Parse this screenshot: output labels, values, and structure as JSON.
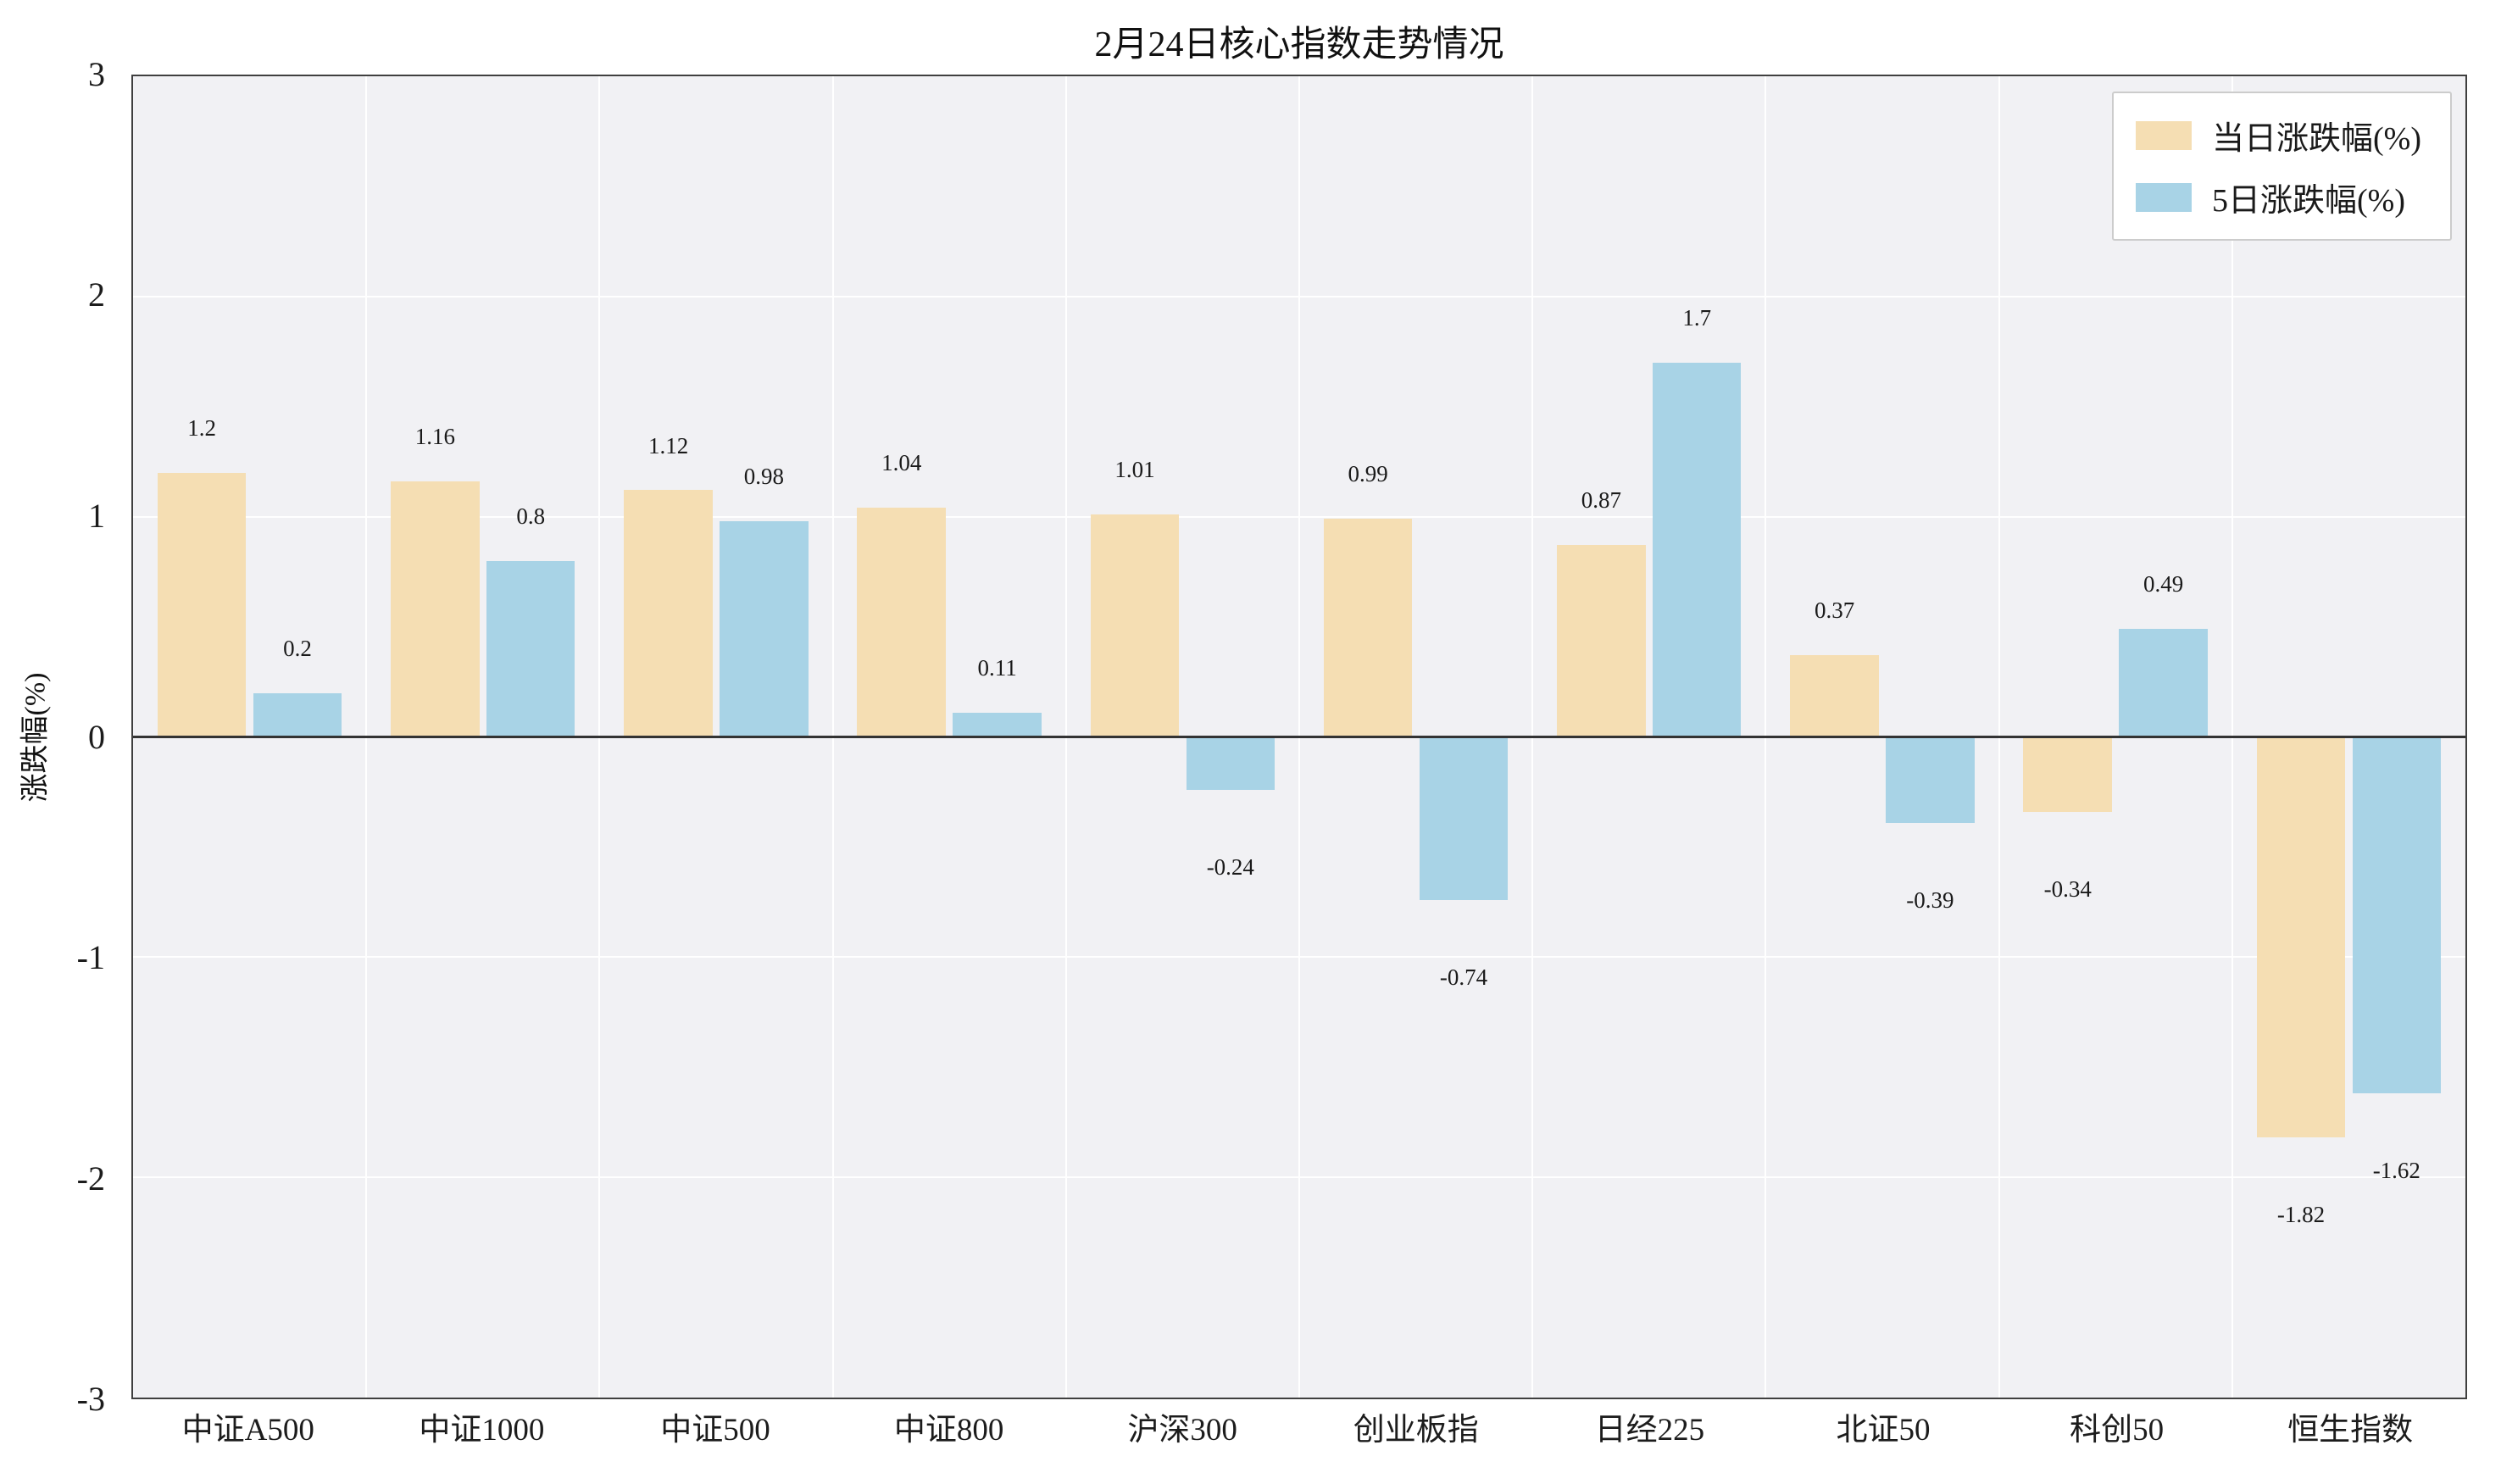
{
  "chart_data": {
    "type": "bar",
    "title": "2月24日核心指数走势情况",
    "xlabel": "",
    "ylabel": "涨跌幅(%)",
    "ylim": [
      -3,
      3
    ],
    "yticks": [
      3,
      2,
      1,
      0,
      -1,
      -2,
      -3
    ],
    "grid": true,
    "legend_position": "upper right",
    "plot_background": "#f1f1f4",
    "categories": [
      "中证A500",
      "中证1000",
      "中证500",
      "中证800",
      "沪深300",
      "创业板指",
      "日经225",
      "北证50",
      "科创50",
      "恒生指数"
    ],
    "series": [
      {
        "name": "当日涨跌幅(%)",
        "color": "#f5deb3",
        "values": [
          1.2,
          1.16,
          1.12,
          1.04,
          1.01,
          0.99,
          0.87,
          0.37,
          -0.34,
          -1.82
        ]
      },
      {
        "name": "5日涨跌幅(%)",
        "color": "#a8d3e6",
        "values": [
          0.2,
          0.8,
          0.98,
          0.11,
          -0.24,
          -0.74,
          1.7,
          -0.39,
          0.49,
          -1.62
        ]
      }
    ]
  }
}
